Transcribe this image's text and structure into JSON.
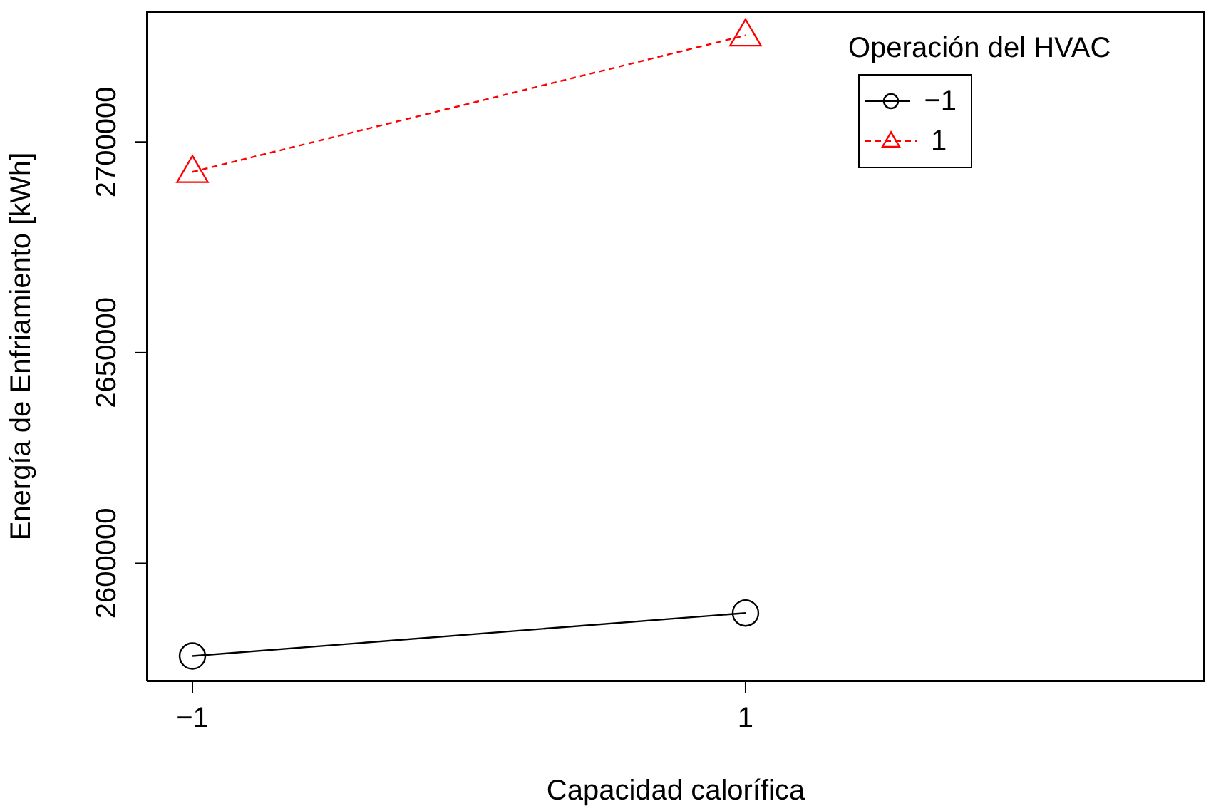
{
  "chart_data": {
    "type": "line",
    "xlabel": "Capacidad calorífica",
    "ylabel": "Energía de Enfriamiento [kWh]",
    "legend_title": "Operación del HVAC",
    "legend": "top right",
    "x": [
      -1,
      1
    ],
    "xlim": [
      -1.165,
      2.66
    ],
    "xticks": [
      {
        "value": -1,
        "label": "−1"
      },
      1
    ],
    "ylim": [
      2572000,
      2731000
    ],
    "yticks": [
      2600000,
      2650000,
      2700000
    ],
    "grid": false,
    "series": [
      {
        "name": "−1",
        "color": "#000000",
        "values": [
          2578000,
          2588200
        ],
        "marker": "circle",
        "line_style": "solid"
      },
      {
        "name": "1",
        "color": "#ff0000",
        "values": [
          2692900,
          2725300
        ],
        "marker": "triangle",
        "line_style": "dashed"
      }
    ]
  }
}
